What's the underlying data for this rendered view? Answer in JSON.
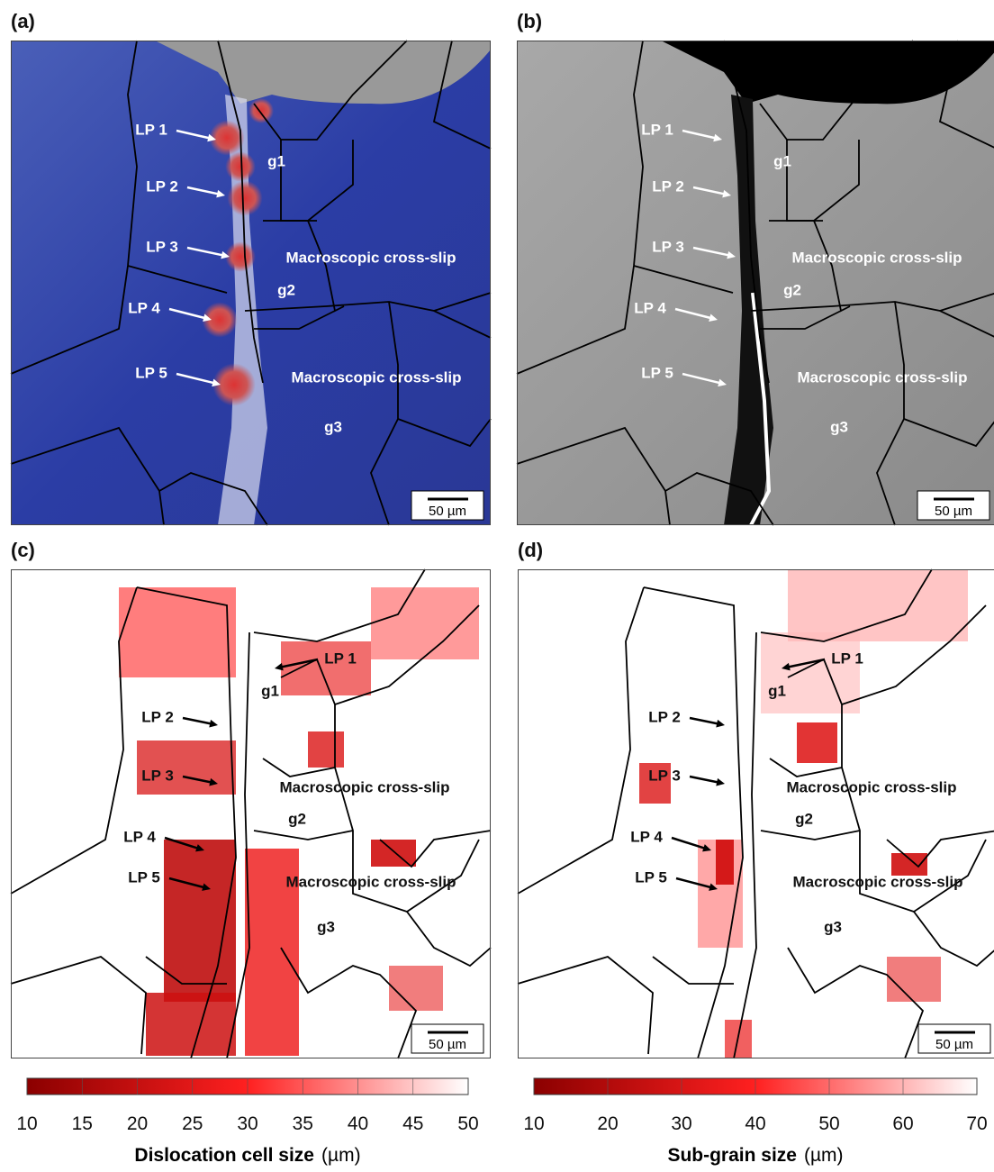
{
  "panels": [
    {
      "label": "(a)",
      "annotations": [
        "LP 1",
        "LP 2",
        "LP 3",
        "LP 4",
        "LP 5",
        "g1",
        "g2",
        "g3",
        "Macroscopic cross-slip",
        "Macroscopic cross-slip"
      ],
      "scale_bar": "50 µm"
    },
    {
      "label": "(b)",
      "annotations": [
        "LP 1",
        "LP 2",
        "LP 3",
        "LP 4",
        "LP 5",
        "g1",
        "g2",
        "g3",
        "Macroscopic cross-slip",
        "Macroscopic cross-slip"
      ],
      "scale_bar": "50 µm"
    },
    {
      "label": "(c)",
      "annotations": [
        "LP 1",
        "LP 2",
        "LP 3",
        "LP 4",
        "LP 5",
        "g1",
        "g2",
        "g3",
        "Macroscopic cross-slip",
        "Macroscopic cross-slip"
      ],
      "scale_bar": "50 µm"
    },
    {
      "label": "(d)",
      "annotations": [
        "LP 1",
        "LP 2",
        "LP 3",
        "LP 4",
        "LP 5",
        "g1",
        "g2",
        "g3",
        "Macroscopic cross-slip",
        "Macroscopic cross-slip"
      ],
      "scale_bar": "50 µm"
    }
  ],
  "colorbars": [
    {
      "title": "Dislocation cell size",
      "unit": "(µm)",
      "lim": [
        10,
        50
      ],
      "ticks": [
        10,
        15,
        20,
        25,
        30,
        35,
        40,
        45,
        50
      ],
      "colors": [
        "#8b0000",
        "#ff2020",
        "#ffffff"
      ]
    },
    {
      "title": "Sub-grain size",
      "unit": "(µm)",
      "lim": [
        10,
        70
      ],
      "ticks": [
        10,
        20,
        30,
        40,
        50,
        60,
        70
      ],
      "colors": [
        "#8b0000",
        "#ff2020",
        "#ffffff"
      ]
    }
  ]
}
